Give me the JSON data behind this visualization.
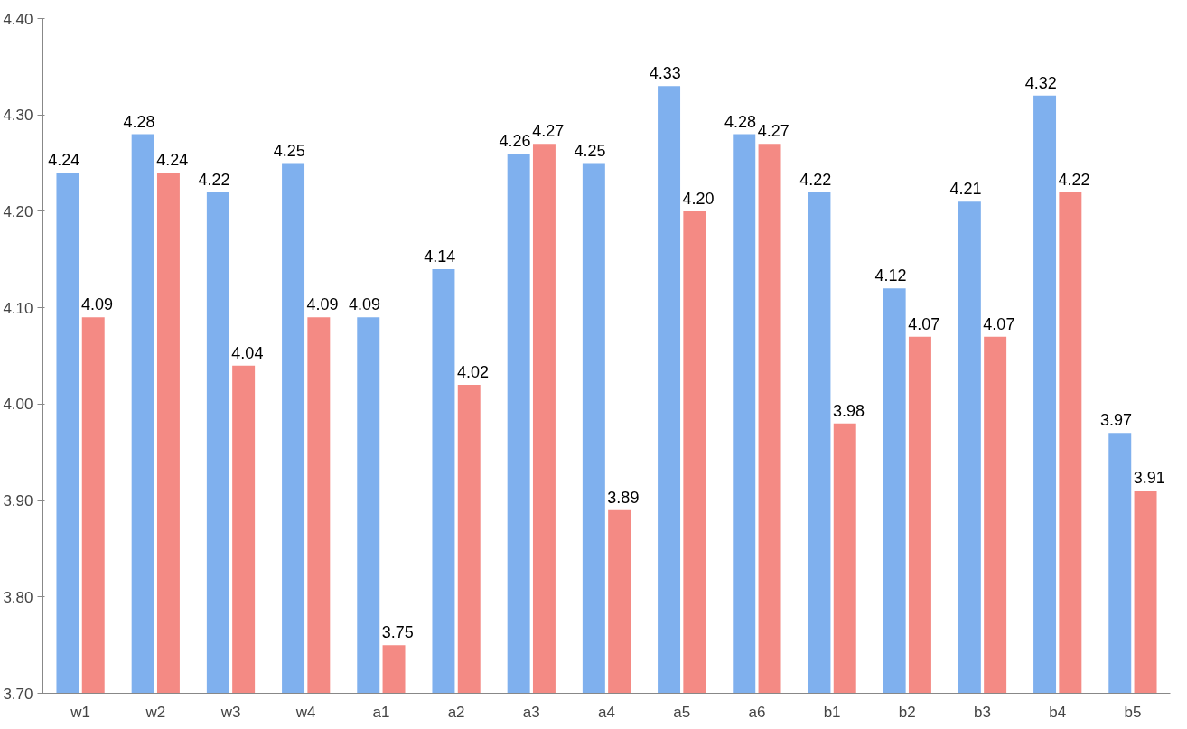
{
  "chart_data": {
    "type": "bar",
    "categories": [
      "w1",
      "w2",
      "w3",
      "w4",
      "a1",
      "a2",
      "a3",
      "a4",
      "a5",
      "a6",
      "b1",
      "b2",
      "b3",
      "b4",
      "b5"
    ],
    "series": [
      {
        "color": "#7fb0ee",
        "values": [
          4.24,
          4.28,
          4.22,
          4.25,
          4.09,
          4.14,
          4.26,
          4.25,
          4.33,
          4.28,
          4.22,
          4.12,
          4.21,
          4.32,
          3.97
        ],
        "value_labels": [
          "4.24",
          "4.28",
          "4.22",
          "4.25",
          "4.09",
          "4.14",
          "4.26",
          "4.25",
          "4.33",
          "4.28",
          "4.22",
          "4.12",
          "4.21",
          "4.32",
          "3.97"
        ]
      },
      {
        "color": "#f48a84",
        "values": [
          4.09,
          4.24,
          4.04,
          4.09,
          3.75,
          4.02,
          4.27,
          3.89,
          4.2,
          4.27,
          3.98,
          4.07,
          4.07,
          4.22,
          3.91
        ],
        "value_labels": [
          "4.09",
          "4.24",
          "4.04",
          "4.09",
          "3.75",
          "4.02",
          "4.27",
          "3.89",
          "4.20",
          "4.27",
          "3.98",
          "4.07",
          "4.07",
          "4.22",
          "3.91"
        ]
      }
    ],
    "ylim": [
      3.7,
      4.4
    ],
    "yticks": [
      {
        "value": 3.7,
        "label": "3.70"
      },
      {
        "value": 3.8,
        "label": "3.80"
      },
      {
        "value": 3.9,
        "label": "3.90"
      },
      {
        "value": 4.0,
        "label": "4.00"
      },
      {
        "value": 4.1,
        "label": "4.10"
      },
      {
        "value": 4.2,
        "label": "4.20"
      },
      {
        "value": 4.3,
        "label": "4.30"
      },
      {
        "value": 4.4,
        "label": "4.40"
      }
    ],
    "grid": false
  }
}
